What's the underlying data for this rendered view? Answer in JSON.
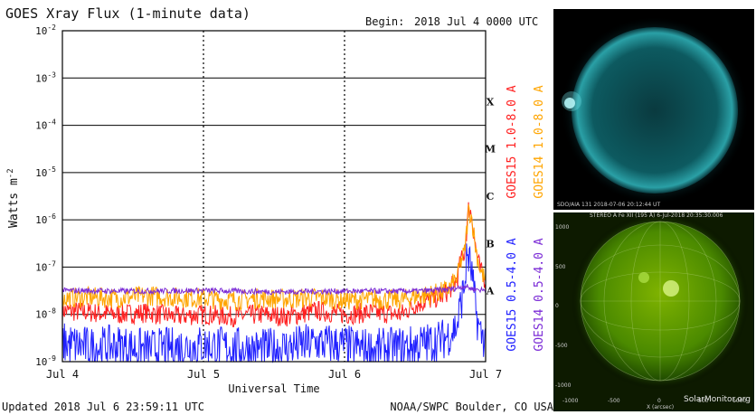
{
  "header": {
    "title": "GOES Xray Flux (1-minute data)",
    "begin_label": "Begin:",
    "begin_value": "2018 Jul 4 0000 UTC"
  },
  "footer": {
    "updated": "Updated 2018 Jul  6 23:59:11 UTC",
    "credit": "NOAA/SWPC Boulder, CO USA"
  },
  "legend": {
    "right_top": [
      {
        "text": "GOES15 1.0-8.0 A",
        "color": "#ff2020"
      },
      {
        "text": "GOES14 1.0-8.0 A",
        "color": "#ffa500"
      }
    ],
    "right_bottom": [
      {
        "text": "GOES15 0.5-4.0 A",
        "color": "#2020ff"
      },
      {
        "text": "GOES14 0.5-4.0 A",
        "color": "#7b2bd6"
      }
    ]
  },
  "images": {
    "sdo_caption": "SDO/AIA  131     2018-07-06 20:12:44 UT",
    "stereo_caption": "STEREO A Fe XII (195 Å)   6-Jul-2018 20:35:30.006",
    "stereo_axis_label": "X (arcsec)",
    "stereo_x_ticks": [
      "-1000",
      "-500",
      "0",
      "500",
      "1000"
    ],
    "stereo_y_ticks": [
      "1000",
      "500",
      "0",
      "-500",
      "-1000"
    ],
    "watermark": "SolarMonitor.org"
  },
  "chart_data": {
    "type": "line",
    "title": "GOES Xray Flux (1-minute data)",
    "xlabel": "Universal Time",
    "ylabel": "Watts m",
    "ylabel_superscript": "-2",
    "x_ticks": [
      "Jul 4",
      "Jul 5",
      "Jul 6",
      "Jul 7"
    ],
    "xlim_days": [
      0,
      3
    ],
    "y_scale": "log",
    "ylim": [
      1e-09,
      0.01
    ],
    "y_tick_mantissa": "10",
    "y_ticks_exponents": [
      "-9",
      "-8",
      "-7",
      "-6",
      "-5",
      "-4",
      "-3",
      "-2"
    ],
    "flare_classes": [
      {
        "label": "X",
        "value": 0.0001
      },
      {
        "label": "M",
        "value": 1e-05
      },
      {
        "label": "C",
        "value": 1e-06
      },
      {
        "label": "B",
        "value": 1e-07
      },
      {
        "label": "A",
        "value": 1e-08
      }
    ],
    "grid": true,
    "series": [
      {
        "name": "GOES15 1.0-8.0 A",
        "color": "#ff2020",
        "days": [
          0,
          0.2,
          0.4,
          0.6,
          0.8,
          1.0,
          1.2,
          1.4,
          1.6,
          1.8,
          2.0,
          2.2,
          2.4,
          2.5,
          2.6,
          2.7,
          2.75,
          2.8,
          2.82,
          2.85,
          2.88,
          2.9,
          2.93,
          2.96,
          3.0
        ],
        "values": [
          1.2e-08,
          1.1e-08,
          1e-08,
          1.1e-08,
          9e-09,
          1e-08,
          9e-09,
          1e-08,
          9e-09,
          1.2e-08,
          1e-08,
          1.1e-08,
          1e-08,
          1.6e-08,
          2e-08,
          2.5e-08,
          3.5e-08,
          6e-08,
          1.2e-07,
          2e-07,
          1.8e-06,
          1.3e-06,
          2.5e-07,
          9e-08,
          5e-08
        ]
      },
      {
        "name": "GOES14 1.0-8.0 A",
        "color": "#ffa500",
        "days": [
          0,
          0.2,
          0.4,
          0.6,
          0.8,
          1.0,
          1.2,
          1.4,
          1.6,
          1.8,
          2.0,
          2.2,
          2.4,
          2.5,
          2.6,
          2.7,
          2.75,
          2.8,
          2.82,
          2.85,
          2.88,
          2.9,
          2.93,
          2.96,
          3.0
        ],
        "values": [
          2.2e-08,
          2.3e-08,
          2.2e-08,
          2.5e-08,
          2.3e-08,
          2.2e-08,
          2e-08,
          2.2e-08,
          2.1e-08,
          2.3e-08,
          2e-08,
          2.1e-08,
          2e-08,
          2.4e-08,
          2.6e-08,
          3e-08,
          3.8e-08,
          6e-08,
          1.2e-07,
          2e-07,
          1.6e-06,
          1.2e-06,
          2.5e-07,
          9e-08,
          5e-08
        ]
      },
      {
        "name": "GOES15 0.5-4.0 A",
        "color": "#2020ff",
        "days": [
          0,
          0.2,
          0.4,
          0.6,
          0.8,
          1.0,
          1.2,
          1.4,
          1.6,
          1.8,
          2.0,
          2.2,
          2.4,
          2.5,
          2.6,
          2.7,
          2.75,
          2.8,
          2.82,
          2.85,
          2.87,
          2.9,
          2.93,
          2.96,
          3.0
        ],
        "values": [
          2.5e-09,
          2e-09,
          2.2e-09,
          1.8e-09,
          2e-09,
          2.2e-09,
          2e-09,
          1.8e-09,
          2e-09,
          2.5e-09,
          2.2e-09,
          1.8e-09,
          2e-09,
          2.2e-09,
          2.5e-09,
          3e-09,
          4e-09,
          6e-09,
          1.5e-08,
          4e-08,
          2e-07,
          8e-08,
          1.2e-08,
          4e-09,
          3e-09
        ]
      },
      {
        "name": "GOES14 0.5-4.0 A",
        "color": "#7b2bd6",
        "days": [
          0,
          0.5,
          1.0,
          1.5,
          2.0,
          2.5,
          2.7,
          2.8,
          2.85,
          2.9,
          3.0
        ],
        "values": [
          3.2e-08,
          3.1e-08,
          3.2e-08,
          3e-08,
          3.1e-08,
          3.1e-08,
          3.3e-08,
          3.6e-08,
          4e-08,
          3.5e-08,
          3.2e-08
        ]
      }
    ]
  }
}
